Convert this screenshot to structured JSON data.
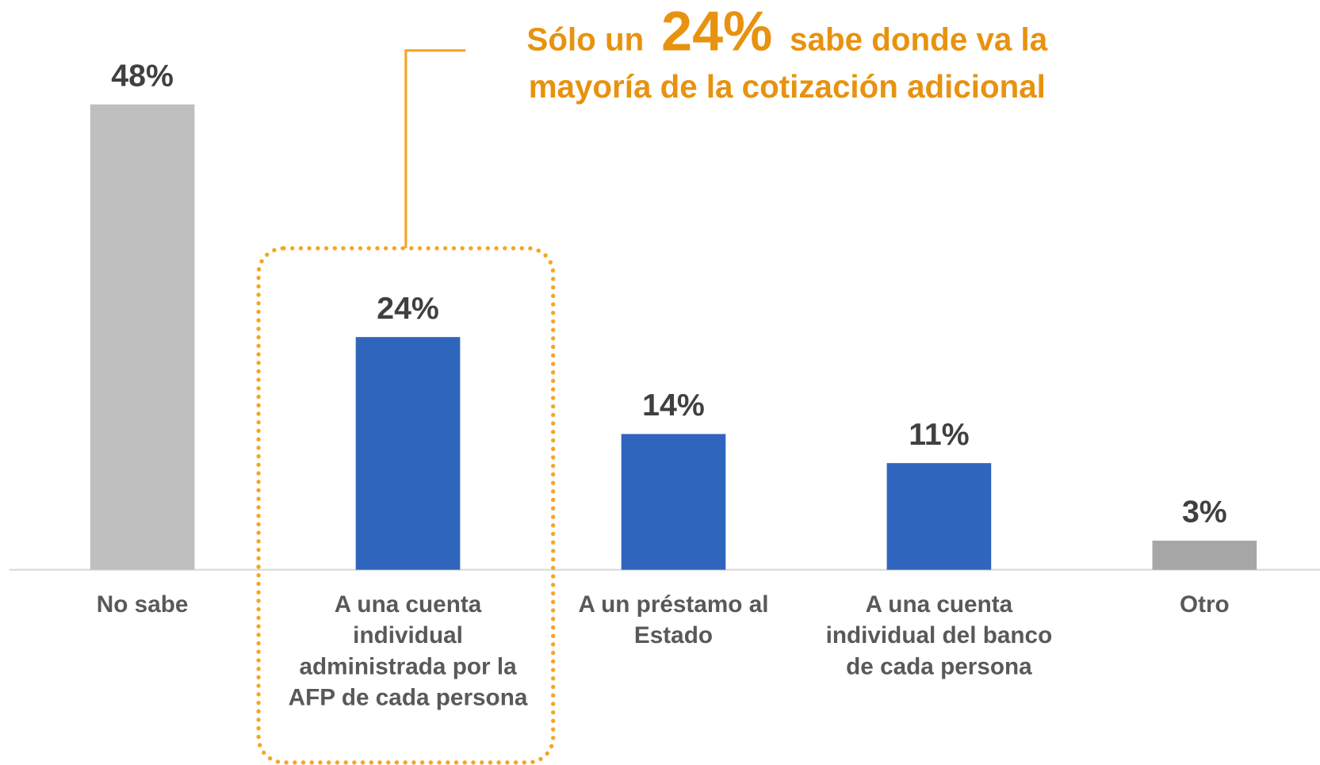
{
  "chart_data": {
    "type": "bar",
    "categories": [
      "No sabe",
      "A una cuenta individual administrada por la AFP de cada persona",
      "A un préstamo al Estado",
      "A una cuenta individual del banco de cada persona",
      "Otro"
    ],
    "values": [
      48,
      24,
      14,
      11,
      3
    ],
    "value_labels": [
      "48%",
      "24%",
      "14%",
      "11%",
      "3%"
    ],
    "colors": [
      "#bfbfbf",
      "#3065be",
      "#3065be",
      "#3065be",
      "#a6a6a6"
    ],
    "ylim": [
      0,
      50
    ],
    "annotation": {
      "lines": [
        [
          "Sólo un",
          "24%",
          "sabe donde va la"
        ],
        [
          "mayoría de la cotización adicional"
        ]
      ]
    }
  }
}
